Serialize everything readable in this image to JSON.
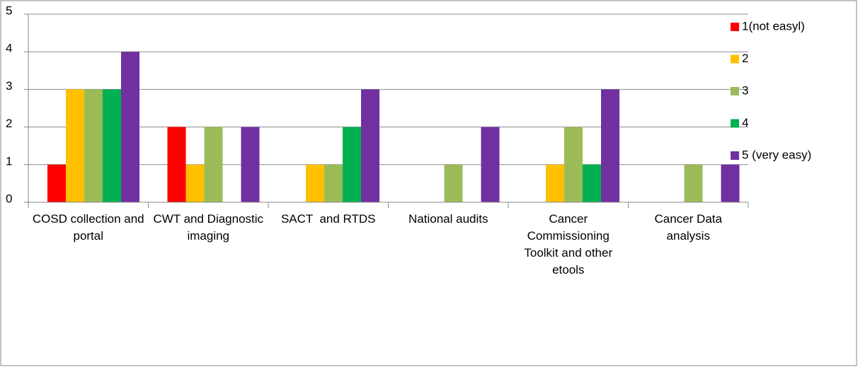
{
  "chart_data": {
    "type": "bar",
    "categories": [
      "COSD collection and portal",
      "CWT and Diagnostic imaging",
      "SACT  and RTDS",
      "National audits",
      "Cancer Commissioning Toolkit and other etools",
      "Cancer Data analysis"
    ],
    "series": [
      {
        "name": "1(not easyl)",
        "color": "#ff0000",
        "values": [
          1,
          2,
          0,
          0,
          0,
          0
        ]
      },
      {
        "name": "2",
        "color": "#ffc000",
        "values": [
          3,
          1,
          1,
          0,
          1,
          0
        ]
      },
      {
        "name": "3",
        "color": "#9bbb59",
        "values": [
          3,
          2,
          1,
          1,
          2,
          1
        ]
      },
      {
        "name": "4",
        "color": "#00b050",
        "values": [
          3,
          0,
          2,
          0,
          1,
          0
        ]
      },
      {
        "name": "5 (very easy)",
        "color": "#7030a0",
        "values": [
          4,
          2,
          3,
          2,
          3,
          1
        ]
      }
    ],
    "ylim": [
      0,
      5
    ],
    "yticks": [
      0,
      1,
      2,
      3,
      4,
      5
    ],
    "grid": true,
    "legend": "right"
  }
}
